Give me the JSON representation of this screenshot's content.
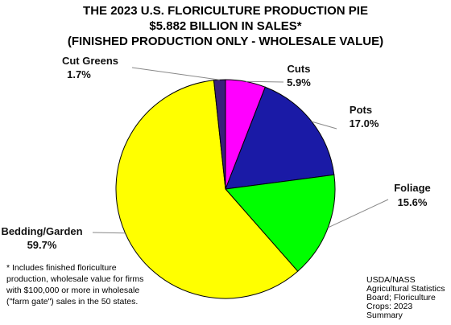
{
  "chart_data": {
    "type": "pie",
    "title": "THE 2023 U.S. FLORICULTURE PRODUCTION PIE",
    "subtitle": "$5.882 BILLION IN SALES*",
    "subtitle2": "(FINISHED PRODUCTION ONLY - WHOLESALE VALUE)",
    "slices": [
      {
        "name": "Cuts",
        "value": 5.9,
        "label": "5.9%",
        "color": "#ff00ff"
      },
      {
        "name": "Pots",
        "value": 17.0,
        "label": "17.0%",
        "color": "#1a1aa6"
      },
      {
        "name": "Foliage",
        "value": 15.6,
        "label": "15.6%",
        "color": "#00ff00"
      },
      {
        "name": "Bedding/Garden",
        "value": 59.7,
        "label": "59.7%",
        "color": "#ffff00"
      },
      {
        "name": "Cut Greens",
        "value": 1.7,
        "label": "1.7%",
        "color": "#3a1f7a"
      }
    ]
  },
  "footnote": "* Includes finished floriculture production, wholesale value for firms with $100,000 or more in wholesale (\"farm gate\") sales in the 50 states.",
  "source": "USDA/NASS Agricultural Statistics Board; Floriculture Crops: 2023 Summary"
}
